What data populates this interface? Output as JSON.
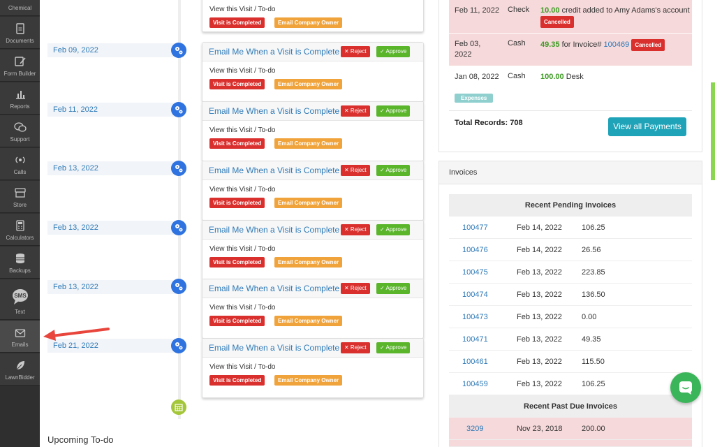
{
  "sidebar": {
    "items": [
      {
        "label": "Chemical",
        "icon": "flask-icon"
      },
      {
        "label": "Documents",
        "icon": "document-icon"
      },
      {
        "label": "Form Builder",
        "icon": "form-builder-icon"
      },
      {
        "label": "Reports",
        "icon": "bar-chart-icon"
      },
      {
        "label": "Support",
        "icon": "chat-bubbles-icon"
      },
      {
        "label": "Calls",
        "icon": "phone-signal-icon"
      },
      {
        "label": "Store",
        "icon": "store-icon"
      },
      {
        "label": "Calculators",
        "icon": "calculator-icon"
      },
      {
        "label": "Backups",
        "icon": "database-icon"
      },
      {
        "label": "Text",
        "icon": "sms-icon"
      },
      {
        "label": "Emails",
        "icon": "envelope-icon"
      },
      {
        "label": "LawnBidder",
        "icon": "leaf-icon"
      }
    ]
  },
  "timeline": {
    "first_card": {
      "body": "View this Visit / To-do",
      "badge_completed": "Visit is Completed",
      "badge_owner": "Email Company Owner"
    },
    "entries": [
      {
        "date": "Feb 09, 2022",
        "title": "Email Me When a Visit is Complete",
        "reject": "✕ Reject",
        "approve": "✓ Approve",
        "body": "View this Visit / To-do",
        "badge_completed": "Visit is Completed",
        "badge_owner": "Email Company Owner"
      },
      {
        "date": "Feb 11, 2022",
        "title": "Email Me When a Visit is Complete",
        "reject": "✕ Reject",
        "approve": "✓ Approve",
        "body": "View this Visit / To-do",
        "badge_completed": "Visit is Completed",
        "badge_owner": "Email Company Owner"
      },
      {
        "date": "Feb 13, 2022",
        "title": "Email Me When a Visit is Complete",
        "reject": "✕ Reject",
        "approve": "✓ Approve",
        "body": "View this Visit / To-do",
        "badge_completed": "Visit is Completed",
        "badge_owner": "Email Company Owner"
      },
      {
        "date": "Feb 13, 2022",
        "title": "Email Me When a Visit is Complete",
        "reject": "✕ Reject",
        "approve": "✓ Approve",
        "body": "View this Visit / To-do",
        "badge_completed": "Visit is Completed",
        "badge_owner": "Email Company Owner"
      },
      {
        "date": "Feb 13, 2022",
        "title": "Email Me When a Visit is Complete",
        "reject": "✕ Reject",
        "approve": "✓ Approve",
        "body": "View this Visit / To-do",
        "badge_completed": "Visit is Completed",
        "badge_owner": "Email Company Owner"
      },
      {
        "date": "Feb 21, 2022",
        "title": "Email Me When a Visit is Complete",
        "reject": "✕ Reject",
        "approve": "✓ Approve",
        "body": "View this Visit / To-do",
        "badge_completed": "Visit is Completed",
        "badge_owner": "Email Company Owner"
      }
    ]
  },
  "upcoming_title": "Upcoming To-do",
  "payments": {
    "rows": [
      {
        "date": "Feb 11, 2022",
        "method": "Check",
        "amount": "10.00",
        "desc": "credit added to Amy Adams's account",
        "label": "Cancelled"
      },
      {
        "date": "Feb 03, 2022",
        "method": "Cash",
        "amount": "49.35",
        "desc": "for Invoice#",
        "invoice": "100469",
        "label": "Cancelled"
      },
      {
        "date": "Jan 08, 2022",
        "method": "Cash",
        "amount": "100.00",
        "desc": "Desk",
        "label": "Expenses"
      }
    ],
    "total_records": "Total Records: 708",
    "view_all": "View all Payments"
  },
  "invoices": {
    "title": "Invoices",
    "pending_title": "Recent Pending Invoices",
    "pending": [
      {
        "num": "100477",
        "date": "Feb 14, 2022",
        "amount": "106.25"
      },
      {
        "num": "100476",
        "date": "Feb 14, 2022",
        "amount": "26.56"
      },
      {
        "num": "100475",
        "date": "Feb 13, 2022",
        "amount": "223.85"
      },
      {
        "num": "100474",
        "date": "Feb 13, 2022",
        "amount": "136.50"
      },
      {
        "num": "100473",
        "date": "Feb 13, 2022",
        "amount": "0.00"
      },
      {
        "num": "100471",
        "date": "Feb 13, 2022",
        "amount": "49.35"
      },
      {
        "num": "100461",
        "date": "Feb 13, 2022",
        "amount": "115.50"
      },
      {
        "num": "100459",
        "date": "Feb 13, 2022",
        "amount": "106.25"
      }
    ],
    "past_due_title": "Recent Past Due Invoices",
    "past_due": [
      {
        "num": "3209",
        "date": "Nov 23, 2018",
        "amount": "200.00"
      }
    ]
  },
  "colors": {
    "sidebar_bg": "#2f2f2f",
    "link_blue": "#2e7ab8",
    "reject_red": "#d9302e",
    "approve_green": "#5ab52b",
    "owner_orange": "#f0a33b",
    "cancelled_row": "#f6d9da",
    "view_all_teal": "#1ea3b8",
    "chat_green": "#3bb55a",
    "arrow_red": "#e8453c"
  }
}
